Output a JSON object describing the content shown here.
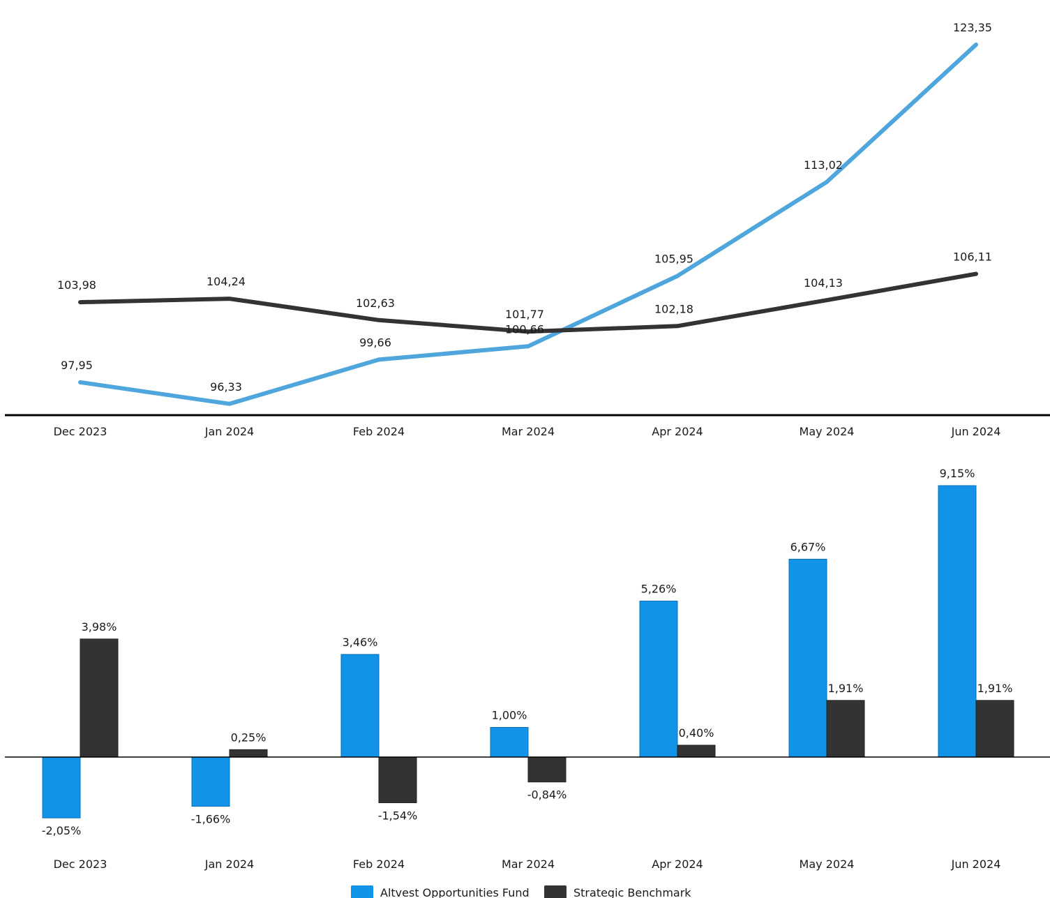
{
  "colors": {
    "fund_line": "#4ea6dc",
    "fund_bar": "#1193e8",
    "benchmark": "#333333",
    "axis": "#000000",
    "text": "#1a1a1a"
  },
  "legend": {
    "placement": "bottom-center",
    "items": [
      "Altvest Opportunities Fund",
      "Strategic Benchmark"
    ]
  },
  "chart_data": [
    {
      "type": "line",
      "categories": [
        "Dec 2023",
        "Jan 2024",
        "Feb 2024",
        "Mar 2024",
        "Apr 2024",
        "May 2024",
        "Jun 2024"
      ],
      "series": [
        {
          "name": "Altvest Opportunities Fund",
          "values": [
            97.95,
            96.33,
            99.66,
            100.66,
            105.95,
            113.02,
            123.35
          ],
          "labels": [
            "97,95",
            "96,33",
            "99,66",
            "100,66",
            "105,95",
            "113,02",
            "123,35"
          ]
        },
        {
          "name": "Strategic Benchmark",
          "values": [
            103.98,
            104.24,
            102.63,
            101.77,
            102.18,
            104.13,
            106.11
          ],
          "labels": [
            "103,98",
            "104,24",
            "102,63",
            "101,77",
            "102,18",
            "104,13",
            "106,11"
          ]
        }
      ],
      "ylim": [
        95.9,
        124.4
      ],
      "grid": false
    },
    {
      "type": "bar",
      "categories": [
        "Dec 2023",
        "Jan 2024",
        "Feb 2024",
        "Mar 2024",
        "Apr 2024",
        "May 2024",
        "Jun 2024"
      ],
      "series": [
        {
          "name": "Altvest Opportunities Fund",
          "values": [
            -2.05,
            -1.66,
            3.46,
            1.0,
            5.26,
            6.67,
            9.15
          ],
          "labels": [
            "-2,05%",
            "-1,66%",
            "3,46%",
            "1,00%",
            "5,26%",
            "6,67%",
            "9,15%"
          ]
        },
        {
          "name": "Strategic Benchmark",
          "values": [
            3.98,
            0.25,
            -1.54,
            -0.84,
            0.4,
            1.91,
            1.91
          ],
          "labels": [
            "3,98%",
            "0,25%",
            "-1,54%",
            "-0,84%",
            "0,40%",
            "1,91%",
            "1,91%"
          ]
        }
      ],
      "ylim": [
        -2.6,
        9.5
      ],
      "grid": false
    }
  ]
}
